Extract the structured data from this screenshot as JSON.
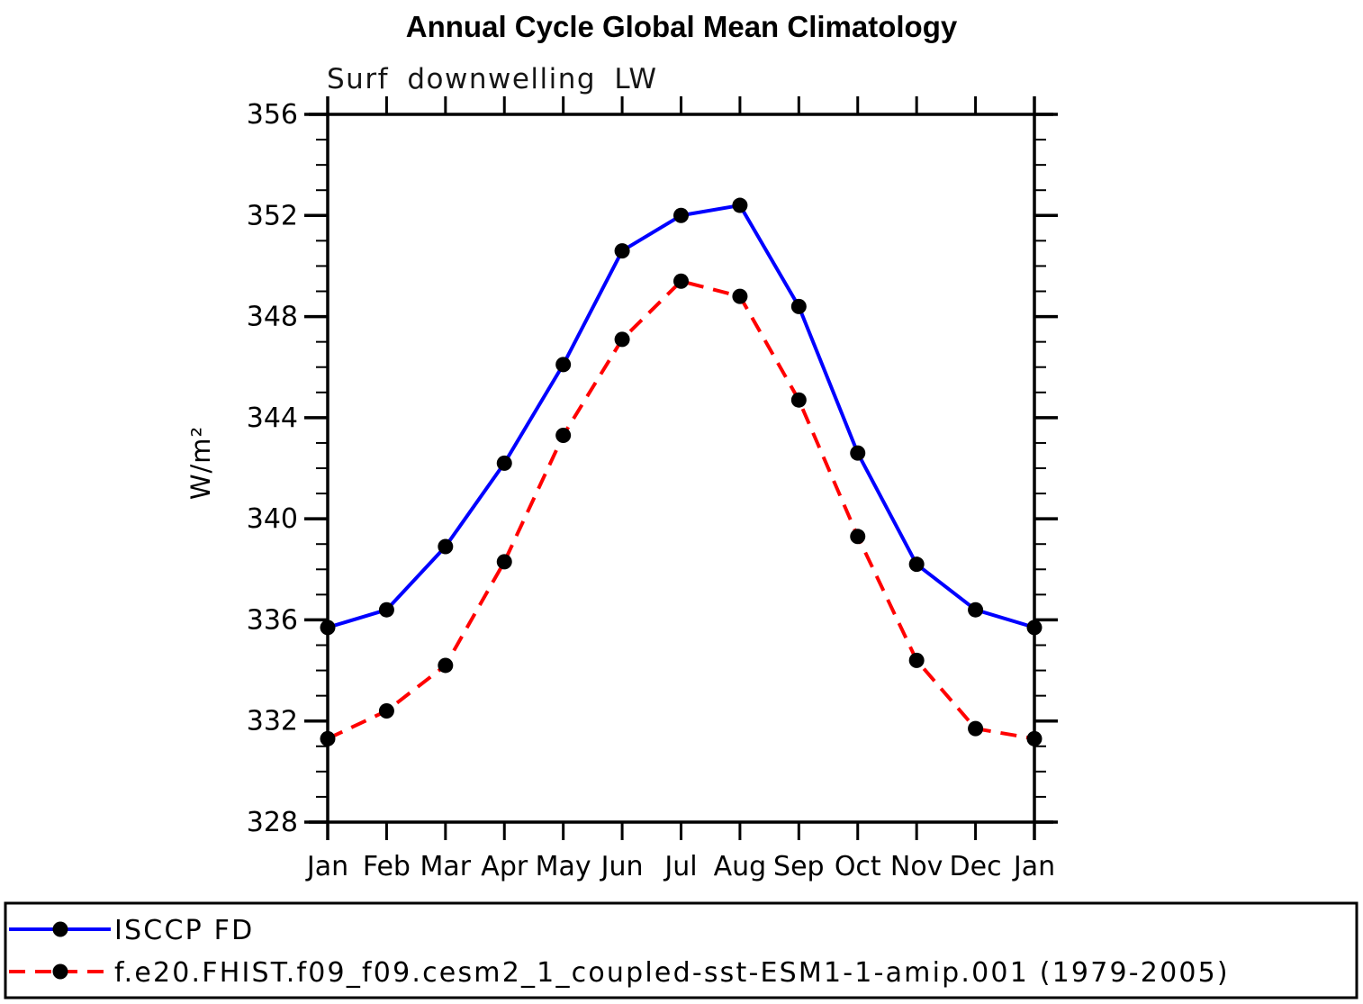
{
  "title": "Annual Cycle Global Mean Climatology",
  "subtitle": "Surf downwelling LW",
  "colors": {
    "series1": "#0000ff",
    "series2": "#ff0000",
    "marker": "#000000",
    "axis": "#000000",
    "background": "#ffffff"
  },
  "chart_data": {
    "type": "line",
    "title": "Annual Cycle Global Mean Climatology",
    "subtitle": "Surf downwelling LW",
    "xlabel": "",
    "ylabel": "W/m²",
    "categories": [
      "Jan",
      "Feb",
      "Mar",
      "Apr",
      "May",
      "Jun",
      "Jul",
      "Aug",
      "Sep",
      "Oct",
      "Nov",
      "Dec",
      "Jan"
    ],
    "series": [
      {
        "name": "ISCCP FD",
        "color": "#0000ff",
        "line_style": "solid",
        "marker": "filled-circle",
        "marker_color": "#000000",
        "values": [
          335.7,
          336.4,
          338.9,
          342.2,
          346.1,
          350.6,
          352.0,
          352.4,
          348.4,
          342.6,
          338.2,
          336.4,
          335.7
        ]
      },
      {
        "name": "f.e20.FHIST.f09_f09.cesm2_1_coupled-sst-ESM1-1-amip.001 (1979-2005)",
        "color": "#ff0000",
        "line_style": "dashed",
        "marker": "filled-circle",
        "marker_color": "#000000",
        "values": [
          331.3,
          332.4,
          334.2,
          338.3,
          343.3,
          347.1,
          349.4,
          348.8,
          344.7,
          339.3,
          334.4,
          331.7,
          331.3
        ]
      }
    ],
    "ylim": [
      328,
      356
    ],
    "ytick_major_interval": 4,
    "ytick_minor_interval": 1,
    "ytick_major_labels": [
      "328",
      "332",
      "336",
      "340",
      "344",
      "348",
      "352",
      "356"
    ],
    "grid": false,
    "legend_position": "bottom"
  }
}
